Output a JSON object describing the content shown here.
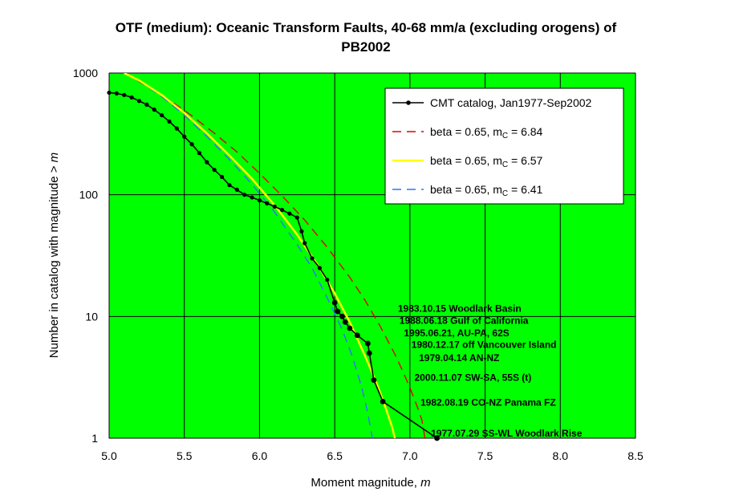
{
  "chart_data": {
    "type": "line",
    "title_line1": "OTF (medium): Oceanic Transform Faults, 40-68 mm/a (excluding orogens) of",
    "title_line2": "PB2002",
    "xlabel": "Moment magnitude, ",
    "xlabel_var": "m",
    "ylabel": "Number in catalog with magnitude > ",
    "ylabel_var": "m",
    "xlim": [
      5.0,
      8.5
    ],
    "ylim": [
      1,
      1000
    ],
    "yscale": "log",
    "grid": true,
    "legend_position": "top-right",
    "x_ticks": [
      "5.0",
      "5.5",
      "6.0",
      "6.5",
      "7.0",
      "7.5",
      "8.0",
      "8.5"
    ],
    "y_ticks": [
      {
        "value": 1,
        "label": "1"
      },
      {
        "value": 10,
        "label": "10"
      },
      {
        "value": 100,
        "label": "100"
      },
      {
        "value": 1000,
        "label": "1000"
      }
    ],
    "colors": {
      "plot_background": "#00ff00",
      "catalog": "#000000",
      "mc_684": "#e00000",
      "mc_657": "#ffff00",
      "mc_641": "#3070ff"
    },
    "legend": [
      {
        "key": "catalog",
        "text": "CMT catalog, Jan1977-Sep2002",
        "sub": "",
        "after": ""
      },
      {
        "key": "mc_684",
        "text": "beta = 0.65, m",
        "sub": "C",
        "after": " = 6.84"
      },
      {
        "key": "mc_657",
        "text": "beta = 0.65, m",
        "sub": "C",
        "after": " = 6.57"
      },
      {
        "key": "mc_641",
        "text": "beta = 0.65, m",
        "sub": "C",
        "after": " = 6.41"
      }
    ],
    "series": [
      {
        "name": "CMT catalog, Jan1977-Sep2002",
        "key": "catalog",
        "style": "solid-markers",
        "x": [
          5.0,
          5.05,
          5.1,
          5.15,
          5.2,
          5.25,
          5.3,
          5.35,
          5.4,
          5.45,
          5.5,
          5.55,
          5.6,
          5.65,
          5.7,
          5.75,
          5.8,
          5.85,
          5.9,
          5.95,
          6.0,
          6.05,
          6.1,
          6.15,
          6.2,
          6.25,
          6.28,
          6.3,
          6.35,
          6.4,
          6.45,
          6.5,
          6.52,
          6.55,
          6.57,
          6.6,
          6.65,
          6.72,
          6.73,
          6.76,
          6.82,
          7.18
        ],
        "y": [
          690,
          680,
          660,
          630,
          590,
          550,
          500,
          450,
          400,
          350,
          300,
          260,
          220,
          185,
          160,
          140,
          120,
          110,
          100,
          95,
          90,
          85,
          80,
          75,
          70,
          65,
          50,
          40,
          30,
          25,
          20,
          13,
          11,
          10,
          9,
          8,
          7,
          6,
          5,
          3,
          2,
          1
        ]
      },
      {
        "name": "beta = 0.65, mC = 6.84",
        "key": "mc_684",
        "style": "dashed",
        "x": [
          5.1,
          5.15,
          5.25,
          5.4,
          5.55,
          5.7,
          5.85,
          6.0,
          6.15,
          6.3,
          6.45,
          6.6,
          6.7,
          6.8,
          6.9,
          6.95,
          7.0,
          7.05,
          7.08,
          7.1
        ],
        "y": [
          1000,
          930,
          780,
          600,
          445,
          320,
          225,
          150,
          98,
          62,
          37,
          21,
          13.7,
          8.4,
          4.9,
          3.6,
          2.6,
          1.8,
          1.4,
          1.0
        ]
      },
      {
        "name": "beta = 0.65, mC = 6.57",
        "key": "mc_657",
        "style": "solid",
        "x": [
          5.1,
          5.2,
          5.35,
          5.5,
          5.65,
          5.8,
          5.95,
          6.1,
          6.25,
          6.4,
          6.5,
          6.6,
          6.7,
          6.78,
          6.84,
          6.88,
          6.9
        ],
        "y": [
          1000,
          870,
          660,
          470,
          320,
          210,
          135,
          82,
          47,
          25,
          15.5,
          9.0,
          4.8,
          2.8,
          1.75,
          1.25,
          1.0
        ]
      },
      {
        "name": "beta = 0.65, mC = 6.41",
        "key": "mc_641",
        "style": "dashed",
        "x": [
          5.1,
          5.2,
          5.35,
          5.5,
          5.65,
          5.8,
          5.95,
          6.1,
          6.25,
          6.35,
          6.45,
          6.55,
          6.62,
          6.68,
          6.72,
          6.75
        ],
        "y": [
          1000,
          860,
          640,
          450,
          300,
          195,
          122,
          72,
          39,
          25,
          14.2,
          7.8,
          4.6,
          2.6,
          1.6,
          1.0
        ]
      }
    ],
    "annotations": [
      {
        "text": "1983.10.15 Woodlark Basin",
        "x": 6.92,
        "y": 10.9
      },
      {
        "text": "1988.06.18 Gulf of California",
        "x": 6.93,
        "y": 8.7
      },
      {
        "text": "1995.06.21, AU-PA, 62S",
        "x": 6.96,
        "y": 6.9
      },
      {
        "text": "1980.12.17 off Vancouver Island",
        "x": 7.01,
        "y": 5.5
      },
      {
        "text": "1979.04.14 AN-NZ",
        "x": 7.06,
        "y": 4.3
      },
      {
        "text": "2000.11.07 SW-SA, 55S (t)",
        "x": 7.03,
        "y": 2.95
      },
      {
        "text": "1982.08.19 CO-NZ Panama FZ",
        "x": 7.07,
        "y": 1.85
      },
      {
        "text": "1977.07.29 SS-WL Woodlark Rise",
        "x": 7.14,
        "y": 1.03
      }
    ]
  }
}
